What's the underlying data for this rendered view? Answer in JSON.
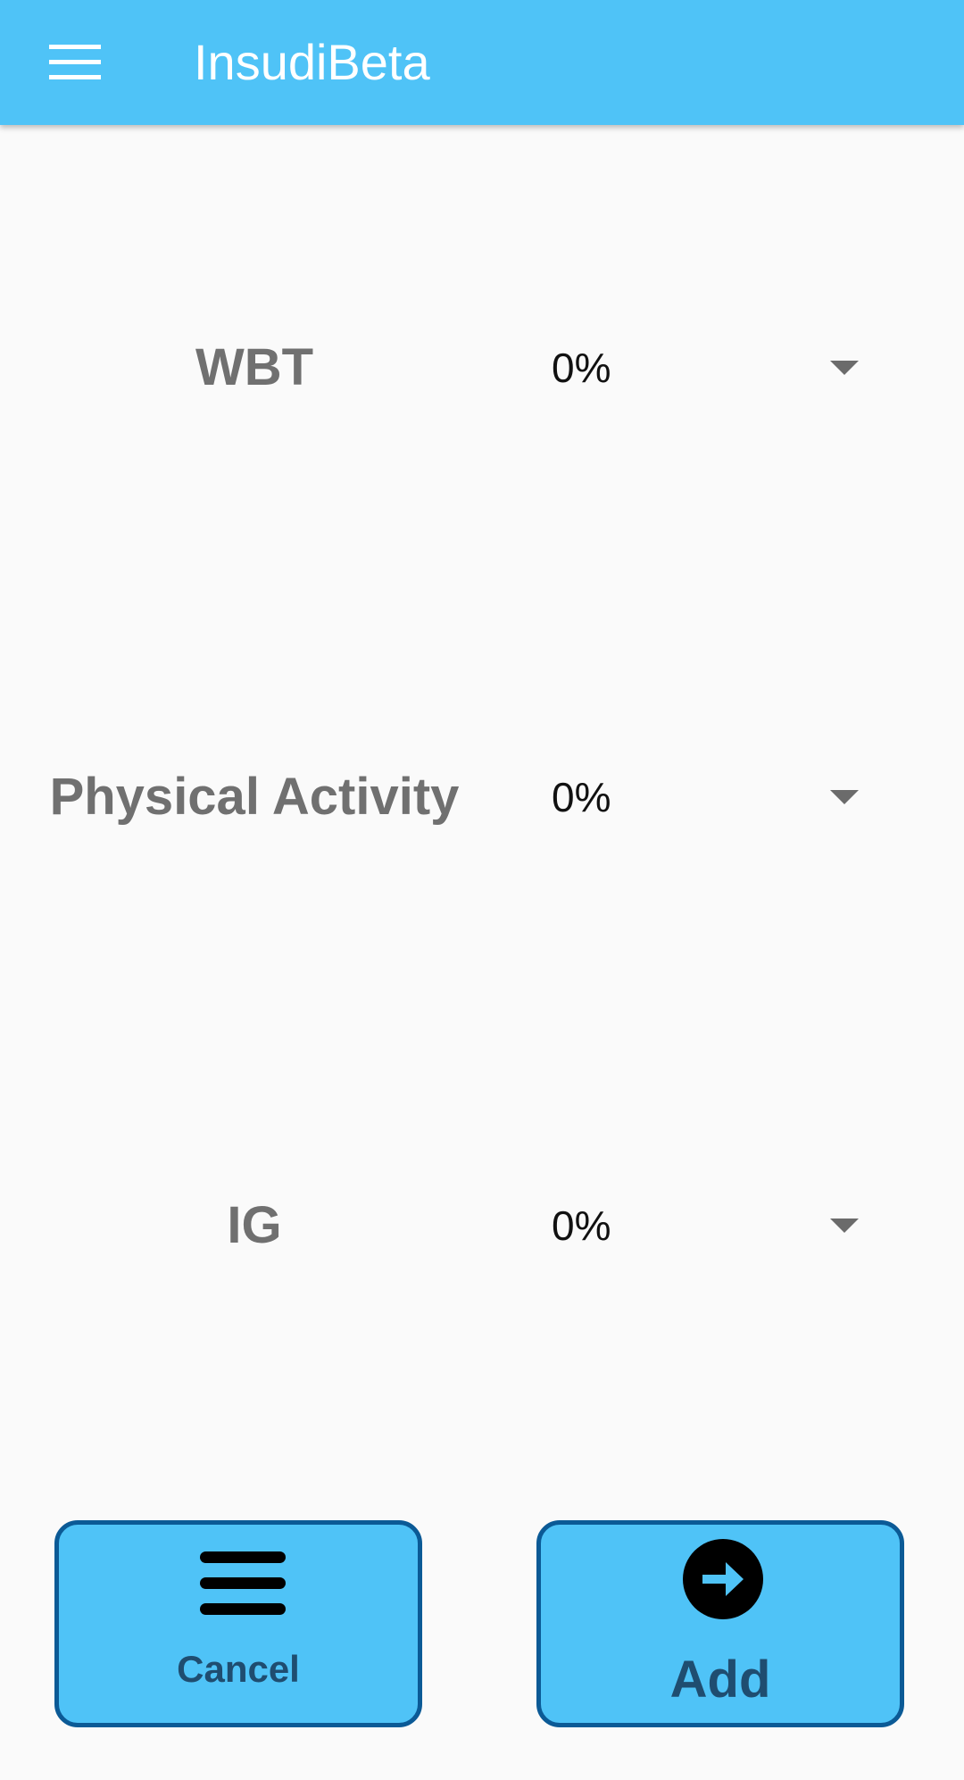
{
  "appbar": {
    "title": "InsudiBeta",
    "menu_icon": "hamburger-menu-icon",
    "color": "#4fc3f7"
  },
  "rows": [
    {
      "label": "WBT",
      "value": "0%"
    },
    {
      "label": "Physical Activity",
      "value": "0%"
    },
    {
      "label": "IG",
      "value": "0%"
    }
  ],
  "buttons": {
    "cancel": {
      "label": "Cancel",
      "icon": "menu-lines-icon"
    },
    "add": {
      "label": "Add",
      "icon": "arrow-right-circle-icon"
    },
    "border_color": "#0b5a96",
    "text_color": "#1f4d70"
  }
}
